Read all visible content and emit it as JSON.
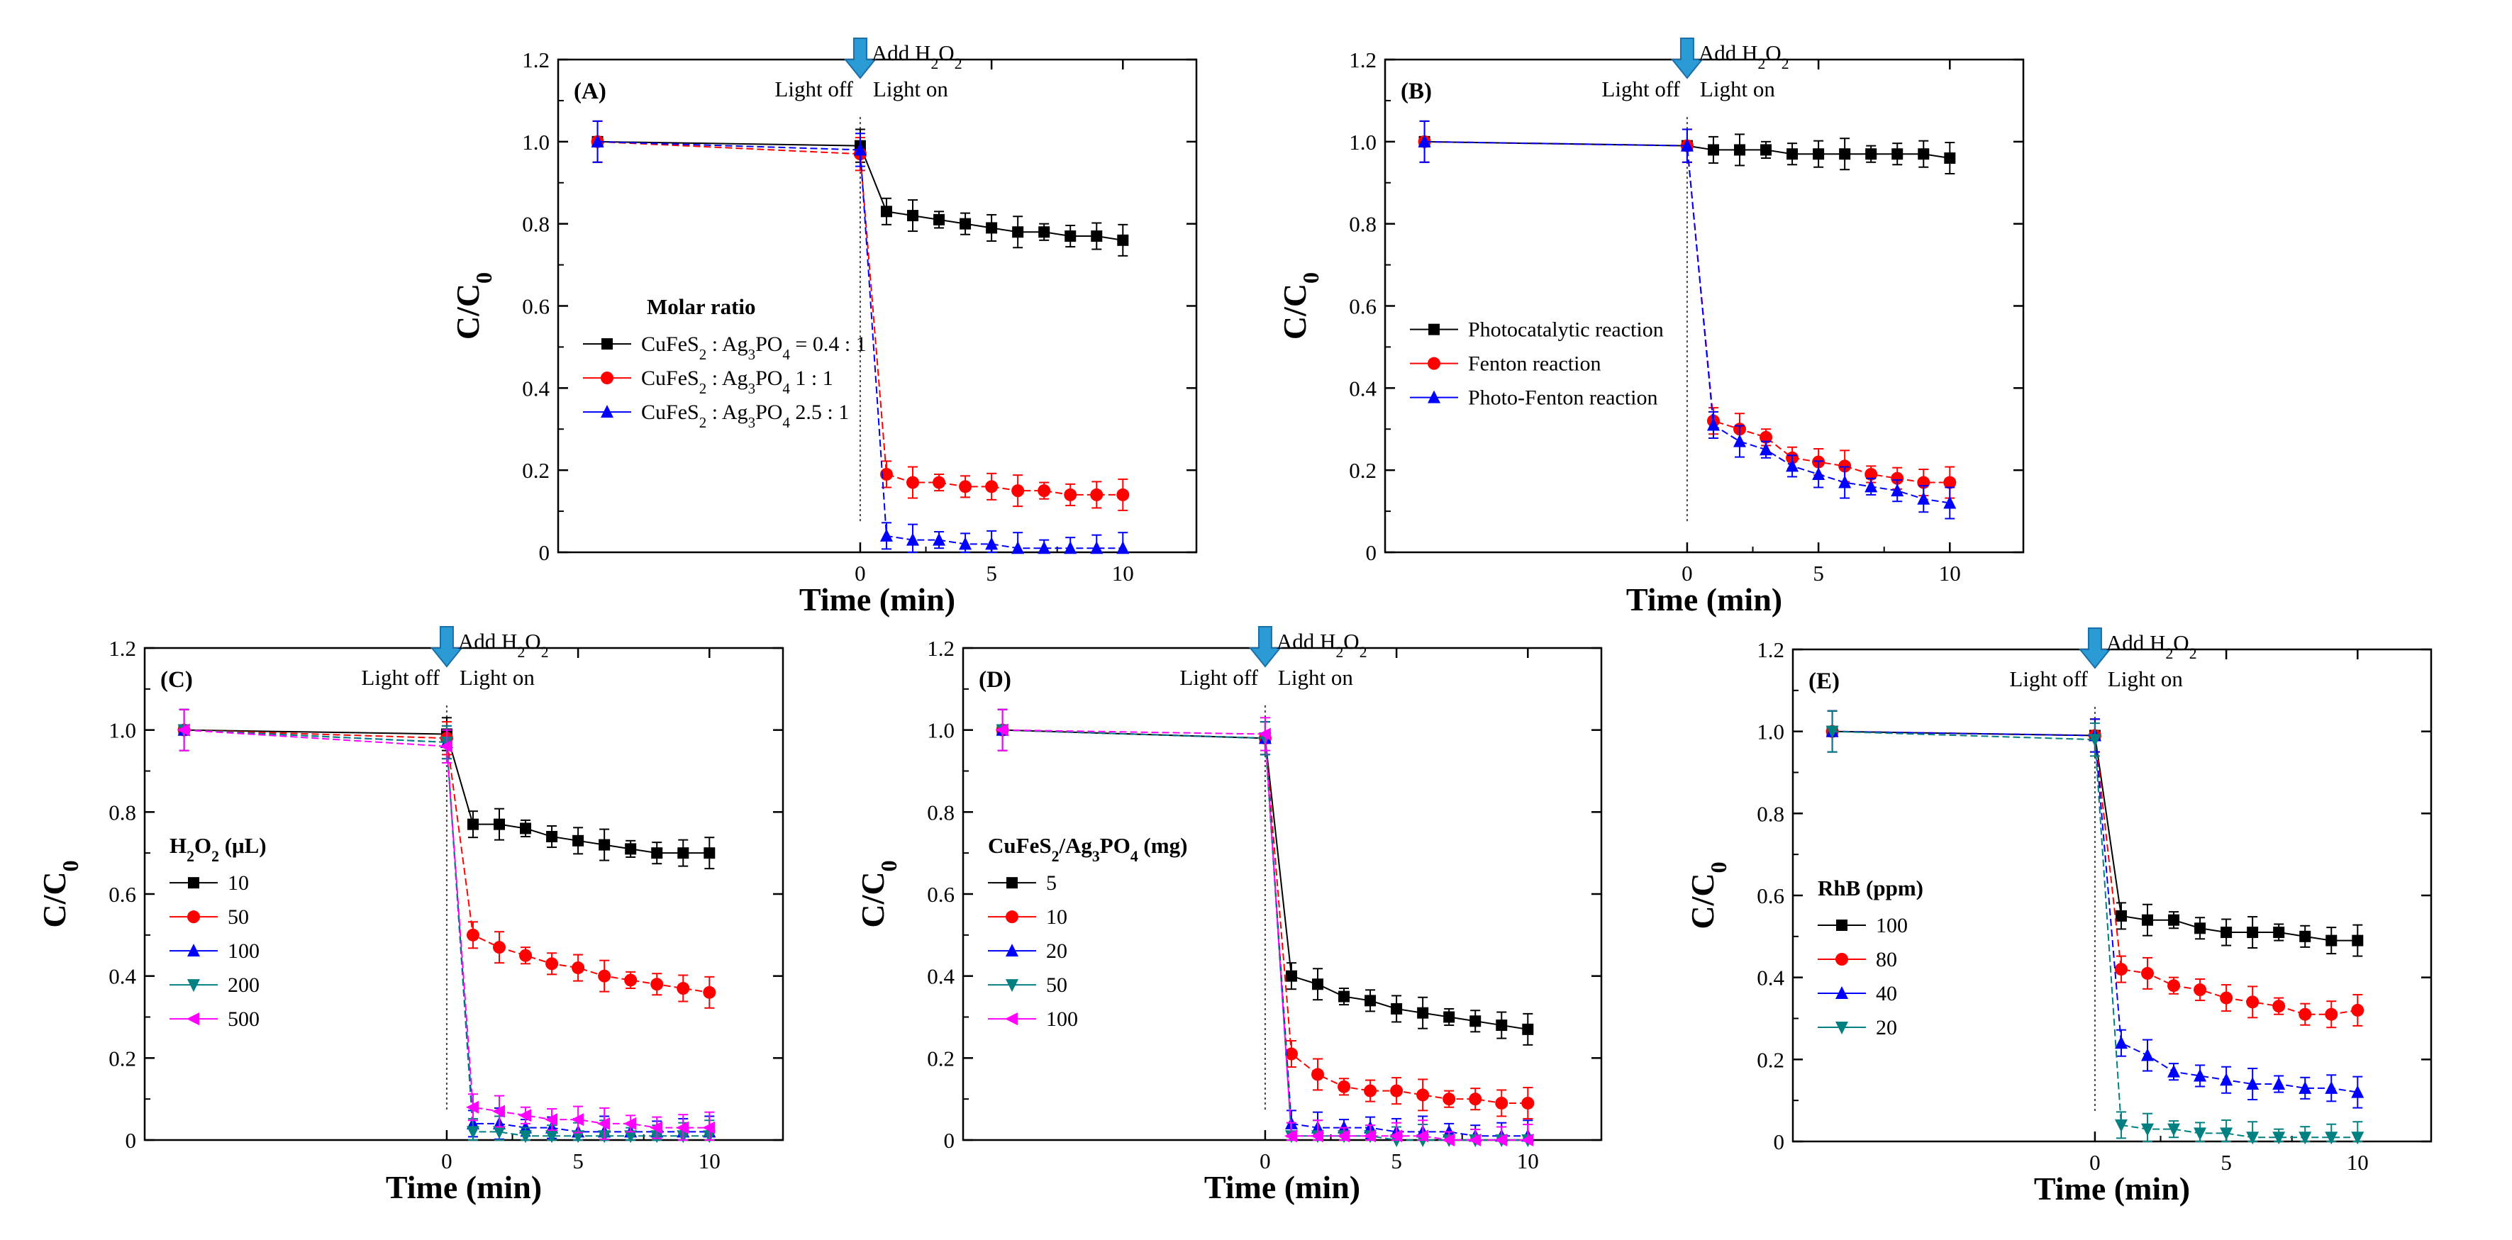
{
  "chart_data": [
    {
      "panel": "(A)",
      "type": "line",
      "ylabel": "C/C0",
      "xlabel": "Time (min)",
      "ylim": [
        0,
        1.2
      ],
      "yticks": [
        "0",
        "0.2",
        "0.4",
        "0.6",
        "0.8",
        "1.0",
        "1.2"
      ],
      "xticks": [
        "0",
        "5",
        "10"
      ],
      "annotations": {
        "add": "Add H2O2",
        "light_off": "Light off",
        "light_on": "Light on"
      },
      "legend_title": "Molar ratio",
      "legend_placement": "middle-left",
      "series": [
        {
          "name": "CuFeS2 : Ag3PO4 = 0.4 : 1",
          "color": "#000000",
          "marker": "square",
          "x": [
            -10,
            0,
            1,
            2,
            3,
            4,
            5,
            6,
            7,
            8,
            9,
            10
          ],
          "y": [
            1.0,
            0.99,
            0.83,
            0.82,
            0.81,
            0.8,
            0.79,
            0.78,
            0.78,
            0.77,
            0.77,
            0.76
          ]
        },
        {
          "name": "CuFeS2 : Ag3PO4 1 : 1",
          "color": "#ff0000",
          "marker": "circle",
          "x": [
            -10,
            0,
            1,
            2,
            3,
            4,
            5,
            6,
            7,
            8,
            9,
            10
          ],
          "y": [
            1.0,
            0.97,
            0.19,
            0.17,
            0.17,
            0.16,
            0.16,
            0.15,
            0.15,
            0.14,
            0.14,
            0.14
          ]
        },
        {
          "name": "CuFeS2 : Ag3PO4 2.5 : 1",
          "color": "#0000ff",
          "marker": "triangle-up",
          "x": [
            -10,
            0,
            1,
            2,
            3,
            4,
            5,
            6,
            7,
            8,
            9,
            10
          ],
          "y": [
            1.0,
            0.98,
            0.04,
            0.03,
            0.03,
            0.02,
            0.02,
            0.01,
            0.01,
            0.01,
            0.01,
            0.01
          ]
        }
      ]
    },
    {
      "panel": "(B)",
      "type": "line",
      "ylabel": "C/C0",
      "xlabel": "Time (min)",
      "ylim": [
        0,
        1.2
      ],
      "yticks": [
        "0",
        "0.2",
        "0.4",
        "0.6",
        "0.8",
        "1.0",
        "1.2"
      ],
      "xticks": [
        "0",
        "5",
        "10"
      ],
      "annotations": {
        "add": "Add H2O2",
        "light_off": "Light off",
        "light_on": "Light on"
      },
      "legend_title": "",
      "legend_placement": "middle-left",
      "series": [
        {
          "name": "Photocatalytic reaction",
          "color": "#000000",
          "marker": "square",
          "x": [
            -10,
            0,
            1,
            2,
            3,
            4,
            5,
            6,
            7,
            8,
            9,
            10
          ],
          "y": [
            1.0,
            0.99,
            0.98,
            0.98,
            0.98,
            0.97,
            0.97,
            0.97,
            0.97,
            0.97,
            0.97,
            0.96
          ]
        },
        {
          "name": "Fenton reaction",
          "color": "#ff0000",
          "marker": "circle",
          "x": [
            -10,
            0,
            1,
            2,
            3,
            4,
            5,
            6,
            7,
            8,
            9,
            10
          ],
          "y": [
            1.0,
            0.99,
            0.32,
            0.3,
            0.28,
            0.23,
            0.22,
            0.21,
            0.19,
            0.18,
            0.17,
            0.17
          ]
        },
        {
          "name": "Photo-Fenton reaction",
          "color": "#0000ff",
          "marker": "triangle-up",
          "x": [
            -10,
            0,
            1,
            2,
            3,
            4,
            5,
            6,
            7,
            8,
            9,
            10
          ],
          "y": [
            1.0,
            0.99,
            0.31,
            0.27,
            0.25,
            0.21,
            0.19,
            0.17,
            0.16,
            0.15,
            0.13,
            0.12
          ]
        }
      ]
    },
    {
      "panel": "(C)",
      "type": "line",
      "ylabel": "C/C0",
      "xlabel": "Time (min)",
      "ylim": [
        0,
        1.2
      ],
      "yticks": [
        "0",
        "0.2",
        "0.4",
        "0.6",
        "0.8",
        "1.0",
        "1.2"
      ],
      "xticks": [
        "0",
        "5",
        "10"
      ],
      "annotations": {
        "add": "Add H2O2",
        "light_off": "Light off",
        "light_on": "Light on"
      },
      "legend_title": "H2O2 (μL)",
      "legend_placement": "lower-left",
      "series": [
        {
          "name": "10",
          "color": "#000000",
          "marker": "square",
          "x": [
            -10,
            0,
            1,
            2,
            3,
            4,
            5,
            6,
            7,
            8,
            9,
            10
          ],
          "y": [
            1.0,
            0.99,
            0.77,
            0.77,
            0.76,
            0.74,
            0.73,
            0.72,
            0.71,
            0.7,
            0.7,
            0.7
          ]
        },
        {
          "name": "50",
          "color": "#ff0000",
          "marker": "circle",
          "x": [
            -10,
            0,
            1,
            2,
            3,
            4,
            5,
            6,
            7,
            8,
            9,
            10
          ],
          "y": [
            1.0,
            0.98,
            0.5,
            0.47,
            0.45,
            0.43,
            0.42,
            0.4,
            0.39,
            0.38,
            0.37,
            0.36
          ]
        },
        {
          "name": "100",
          "color": "#0000ff",
          "marker": "triangle-up",
          "x": [
            -10,
            0,
            1,
            2,
            3,
            4,
            5,
            6,
            7,
            8,
            9,
            10
          ],
          "y": [
            1.0,
            0.97,
            0.04,
            0.04,
            0.03,
            0.03,
            0.02,
            0.02,
            0.02,
            0.02,
            0.02,
            0.02
          ]
        },
        {
          "name": "200",
          "color": "#008080",
          "marker": "triangle-down",
          "x": [
            -10,
            0,
            1,
            2,
            3,
            4,
            5,
            6,
            7,
            8,
            9,
            10
          ],
          "y": [
            1.0,
            0.97,
            0.02,
            0.02,
            0.01,
            0.01,
            0.01,
            0.01,
            0.01,
            0.01,
            0.01,
            0.01
          ]
        },
        {
          "name": "500",
          "color": "#ff00ff",
          "marker": "triangle-left",
          "x": [
            -10,
            0,
            1,
            2,
            3,
            4,
            5,
            6,
            7,
            8,
            9,
            10
          ],
          "y": [
            1.0,
            0.96,
            0.08,
            0.07,
            0.06,
            0.05,
            0.05,
            0.04,
            0.04,
            0.03,
            0.03,
            0.03
          ]
        }
      ]
    },
    {
      "panel": "(D)",
      "type": "line",
      "ylabel": "C/C0",
      "xlabel": "Time (min)",
      "ylim": [
        0,
        1.2
      ],
      "yticks": [
        "0",
        "0.2",
        "0.4",
        "0.6",
        "0.8",
        "1.0",
        "1.2"
      ],
      "xticks": [
        "0",
        "5",
        "10"
      ],
      "annotations": {
        "add": "Add H2O2",
        "light_off": "Light off",
        "light_on": "Light on"
      },
      "legend_title": "CuFeS2/Ag3PO4 (mg)",
      "legend_placement": "lower-left",
      "series": [
        {
          "name": "5",
          "color": "#000000",
          "marker": "square",
          "x": [
            -10,
            0,
            1,
            2,
            3,
            4,
            5,
            6,
            7,
            8,
            9,
            10
          ],
          "y": [
            1.0,
            0.98,
            0.4,
            0.38,
            0.35,
            0.34,
            0.32,
            0.31,
            0.3,
            0.29,
            0.28,
            0.27
          ]
        },
        {
          "name": "10",
          "color": "#ff0000",
          "marker": "circle",
          "x": [
            -10,
            0,
            1,
            2,
            3,
            4,
            5,
            6,
            7,
            8,
            9,
            10
          ],
          "y": [
            1.0,
            0.98,
            0.21,
            0.16,
            0.13,
            0.12,
            0.12,
            0.11,
            0.1,
            0.1,
            0.09,
            0.09
          ]
        },
        {
          "name": "20",
          "color": "#0000ff",
          "marker": "triangle-up",
          "x": [
            -10,
            0,
            1,
            2,
            3,
            4,
            5,
            6,
            7,
            8,
            9,
            10
          ],
          "y": [
            1.0,
            0.98,
            0.04,
            0.03,
            0.03,
            0.03,
            0.02,
            0.02,
            0.02,
            0.01,
            0.01,
            0.01
          ]
        },
        {
          "name": "50",
          "color": "#008080",
          "marker": "triangle-down",
          "x": [
            -10,
            0,
            1,
            2,
            3,
            4,
            5,
            6,
            7,
            8,
            9,
            10
          ],
          "y": [
            1.0,
            0.98,
            0.01,
            0.01,
            0.01,
            0.01,
            0.0,
            0.0,
            0.0,
            0.0,
            0.0,
            0.0
          ]
        },
        {
          "name": "100",
          "color": "#ff00ff",
          "marker": "triangle-left",
          "x": [
            -10,
            0,
            1,
            2,
            3,
            4,
            5,
            6,
            7,
            8,
            9,
            10
          ],
          "y": [
            1.0,
            0.99,
            0.01,
            0.01,
            0.01,
            0.01,
            0.01,
            0.01,
            0.0,
            0.0,
            0.0,
            0.0
          ]
        }
      ]
    },
    {
      "panel": "(E)",
      "type": "line",
      "ylabel": "C/C0",
      "xlabel": "Time (min)",
      "ylim": [
        0,
        1.2
      ],
      "yticks": [
        "0",
        "0.2",
        "0.4",
        "0.6",
        "0.8",
        "1.0",
        "1.2"
      ],
      "xticks": [
        "0",
        "5",
        "10"
      ],
      "annotations": {
        "add": "Add H2O2",
        "light_off": "Light off",
        "light_on": "Light on"
      },
      "legend_title": "RhB (ppm)",
      "legend_placement": "lower-left",
      "series": [
        {
          "name": "100",
          "color": "#000000",
          "marker": "square",
          "x": [
            -10,
            0,
            1,
            2,
            3,
            4,
            5,
            6,
            7,
            8,
            9,
            10
          ],
          "y": [
            1.0,
            0.99,
            0.55,
            0.54,
            0.54,
            0.52,
            0.51,
            0.51,
            0.51,
            0.5,
            0.49,
            0.49
          ]
        },
        {
          "name": "80",
          "color": "#ff0000",
          "marker": "circle",
          "x": [
            -10,
            0,
            1,
            2,
            3,
            4,
            5,
            6,
            7,
            8,
            9,
            10
          ],
          "y": [
            1.0,
            0.99,
            0.42,
            0.41,
            0.38,
            0.37,
            0.35,
            0.34,
            0.33,
            0.31,
            0.31,
            0.32
          ]
        },
        {
          "name": "40",
          "color": "#0000ff",
          "marker": "triangle-up",
          "x": [
            -10,
            0,
            1,
            2,
            3,
            4,
            5,
            6,
            7,
            8,
            9,
            10
          ],
          "y": [
            1.0,
            0.99,
            0.24,
            0.21,
            0.17,
            0.16,
            0.15,
            0.14,
            0.14,
            0.13,
            0.13,
            0.12
          ]
        },
        {
          "name": "20",
          "color": "#008080",
          "marker": "triangle-down",
          "x": [
            -10,
            0,
            1,
            2,
            3,
            4,
            5,
            6,
            7,
            8,
            9,
            10
          ],
          "y": [
            1.0,
            0.98,
            0.04,
            0.03,
            0.03,
            0.02,
            0.02,
            0.01,
            0.01,
            0.01,
            0.01,
            0.01
          ]
        }
      ]
    }
  ]
}
